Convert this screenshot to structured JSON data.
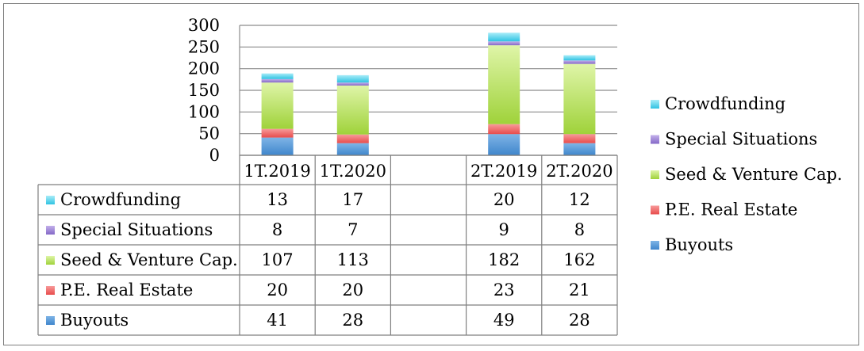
{
  "chart_data": {
    "type": "bar",
    "stacked": true,
    "categories": [
      "1T.2019",
      "1T.2020",
      "",
      "2T.2019",
      "2T.2020"
    ],
    "series": [
      {
        "name": "Buyouts",
        "values": [
          41,
          28,
          null,
          49,
          28
        ],
        "color": "#5b9bd5"
      },
      {
        "name": "P.E. Real Estate",
        "values": [
          20,
          20,
          null,
          23,
          21
        ],
        "color": "#f26d6d"
      },
      {
        "name": "Seed & Venture Cap.",
        "values": [
          107,
          113,
          null,
          182,
          162
        ],
        "color": "#b5e05a"
      },
      {
        "name": "Special Situations",
        "values": [
          8,
          7,
          null,
          9,
          8
        ],
        "color": "#9b7fd4"
      },
      {
        "name": "Crowdfunding",
        "values": [
          13,
          17,
          null,
          20,
          12
        ],
        "color": "#4ed2ec"
      }
    ],
    "ylim": [
      0,
      300
    ],
    "yticks": [
      "0",
      "50",
      "100",
      "150",
      "200",
      "250",
      "300"
    ],
    "grid": true,
    "legend_position": "right",
    "data_table": true,
    "table_row_order": [
      "Crowdfunding",
      "Special Situations",
      "Seed & Venture Cap.",
      "P.E. Real Estate",
      "Buyouts"
    ],
    "legend_order": [
      "Crowdfunding",
      "Special Situations",
      "Seed & Venture Cap.",
      "P.E. Real Estate",
      "Buyouts"
    ]
  }
}
